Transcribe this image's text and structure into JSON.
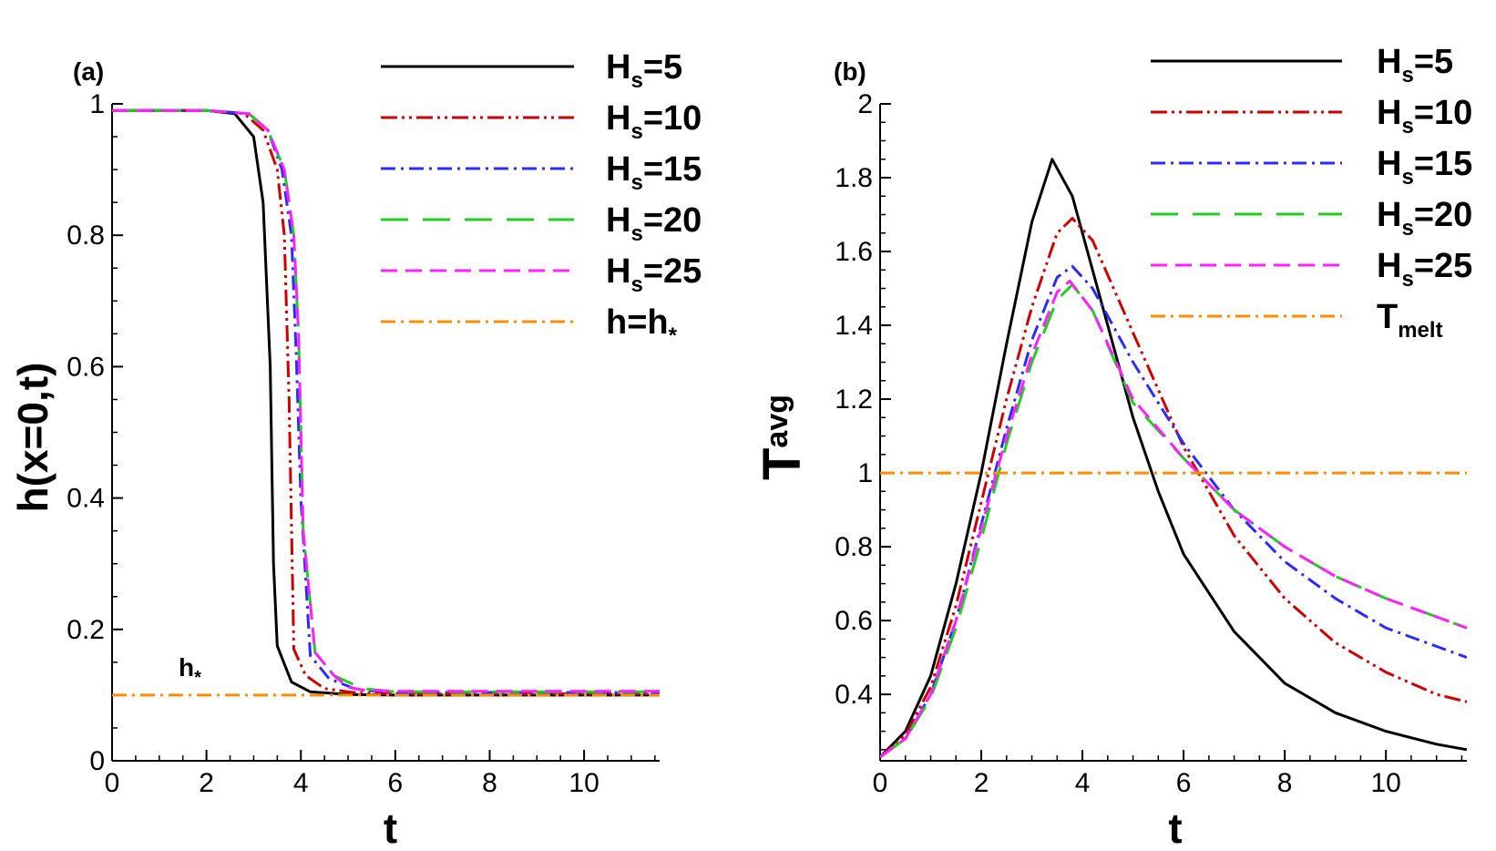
{
  "colors": {
    "Hs5": "#000000",
    "Hs10": "#cc0000",
    "Hs15": "#2b2bff",
    "Hs20": "#22cc22",
    "Hs25": "#ff22ff",
    "ref": "#ff8c00"
  },
  "chart_data": [
    {
      "type": "line",
      "panel_label": "(a)",
      "xlabel": "t",
      "ylabel": "h(x=0,t)",
      "xlim": [
        0,
        11.6
      ],
      "ylim": [
        0,
        1
      ],
      "xticks": [
        "0",
        "2",
        "4",
        "6",
        "8",
        "10"
      ],
      "yticks": [
        "0",
        "0.2",
        "0.4",
        "0.6",
        "0.8",
        "1"
      ],
      "annotation": {
        "main": "h",
        "sub": "*"
      },
      "legend": [
        {
          "main": "H",
          "sub": "s",
          "rest": "=5"
        },
        {
          "main": "H",
          "sub": "s",
          "rest": "=10"
        },
        {
          "main": "H",
          "sub": "s",
          "rest": "=15"
        },
        {
          "main": "H",
          "sub": "s",
          "rest": "=20"
        },
        {
          "main": "H",
          "sub": "s",
          "rest": "=25"
        },
        {
          "main": "h=h",
          "sub": "*",
          "rest": ""
        }
      ],
      "series": [
        {
          "key": "Hs5",
          "x": [
            0,
            2,
            2.6,
            3.0,
            3.2,
            3.35,
            3.42,
            3.5,
            3.8,
            4.2,
            5,
            6,
            8,
            11.6
          ],
          "y": [
            0.99,
            0.99,
            0.985,
            0.95,
            0.85,
            0.6,
            0.3,
            0.175,
            0.12,
            0.105,
            0.101,
            0.1,
            0.1,
            0.1
          ]
        },
        {
          "key": "Hs10",
          "x": [
            0,
            2,
            2.8,
            3.2,
            3.5,
            3.65,
            3.75,
            3.85,
            4.1,
            4.5,
            5.2,
            6,
            8,
            11.6
          ],
          "y": [
            0.99,
            0.99,
            0.985,
            0.96,
            0.9,
            0.8,
            0.55,
            0.17,
            0.13,
            0.11,
            0.103,
            0.102,
            0.102,
            0.102
          ]
        },
        {
          "key": "Hs15",
          "x": [
            0,
            2,
            2.9,
            3.3,
            3.6,
            3.8,
            3.9,
            4.0,
            4.2,
            4.6,
            5.2,
            6,
            8,
            11.6
          ],
          "y": [
            0.99,
            0.99,
            0.985,
            0.96,
            0.9,
            0.8,
            0.62,
            0.4,
            0.16,
            0.125,
            0.108,
            0.104,
            0.104,
            0.104
          ]
        },
        {
          "key": "Hs20",
          "x": [
            0,
            2,
            2.9,
            3.3,
            3.65,
            3.85,
            3.95,
            4.05,
            4.3,
            4.7,
            5.3,
            6,
            8,
            11.6
          ],
          "y": [
            0.99,
            0.99,
            0.985,
            0.96,
            0.9,
            0.8,
            0.65,
            0.35,
            0.165,
            0.13,
            0.11,
            0.105,
            0.105,
            0.105
          ]
        },
        {
          "key": "Hs25",
          "x": [
            0,
            2,
            2.9,
            3.3,
            3.65,
            3.85,
            3.95,
            4.05,
            4.3,
            4.7,
            5.0,
            5.3,
            6,
            8,
            11.6
          ],
          "y": [
            0.99,
            0.99,
            0.985,
            0.96,
            0.9,
            0.8,
            0.65,
            0.35,
            0.165,
            0.13,
            0.112,
            0.108,
            0.106,
            0.106,
            0.106
          ]
        },
        {
          "key": "ref",
          "x": [
            0,
            11.6
          ],
          "y": [
            0.1,
            0.1
          ]
        }
      ]
    },
    {
      "type": "line",
      "panel_label": "(b)",
      "xlabel": "T",
      "xlabel_text": "t",
      "ylabel": "avg",
      "ylabel_main": "T",
      "xlim": [
        0,
        11.6
      ],
      "ylim": [
        0.22,
        2
      ],
      "xticks": [
        "0",
        "2",
        "4",
        "6",
        "8",
        "10"
      ],
      "yticks": [
        "0.4",
        "0.6",
        "0.8",
        "1",
        "1.2",
        "1.4",
        "1.6",
        "1.8",
        "2"
      ],
      "legend": [
        {
          "main": "H",
          "sub": "s",
          "rest": "=5"
        },
        {
          "main": "H",
          "sub": "s",
          "rest": "=10"
        },
        {
          "main": "H",
          "sub": "s",
          "rest": "=15"
        },
        {
          "main": "H",
          "sub": "s",
          "rest": "=20"
        },
        {
          "main": "H",
          "sub": "s",
          "rest": "=25"
        },
        {
          "main": "T",
          "sub": "melt",
          "rest": ""
        }
      ],
      "series": [
        {
          "key": "Hs5",
          "x": [
            0,
            0.5,
            1,
            1.5,
            2,
            2.5,
            3,
            3.4,
            3.8,
            4.3,
            5,
            5.5,
            6,
            7,
            8,
            9,
            10,
            11,
            11.6
          ],
          "y": [
            0.23,
            0.3,
            0.45,
            0.7,
            1.0,
            1.35,
            1.68,
            1.85,
            1.75,
            1.5,
            1.15,
            0.95,
            0.78,
            0.57,
            0.43,
            0.35,
            0.3,
            0.265,
            0.25
          ]
        },
        {
          "key": "Hs10",
          "x": [
            0,
            0.5,
            1,
            1.5,
            2,
            2.5,
            3,
            3.5,
            3.8,
            4.2,
            5,
            6,
            7,
            8,
            9,
            10,
            11,
            11.6
          ],
          "y": [
            0.23,
            0.29,
            0.42,
            0.64,
            0.92,
            1.2,
            1.45,
            1.65,
            1.69,
            1.63,
            1.38,
            1.07,
            0.83,
            0.66,
            0.54,
            0.46,
            0.4,
            0.38
          ]
        },
        {
          "key": "Hs15",
          "x": [
            0,
            0.5,
            1,
            1.5,
            2,
            2.5,
            3,
            3.5,
            3.8,
            4.2,
            5,
            6,
            7,
            8,
            9,
            10,
            11,
            11.6
          ],
          "y": [
            0.23,
            0.28,
            0.4,
            0.6,
            0.86,
            1.12,
            1.36,
            1.53,
            1.56,
            1.5,
            1.3,
            1.08,
            0.9,
            0.76,
            0.66,
            0.58,
            0.53,
            0.5
          ]
        },
        {
          "key": "Hs20",
          "x": [
            0,
            0.5,
            1,
            1.5,
            2,
            2.5,
            3,
            3.5,
            3.8,
            4.2,
            5,
            6,
            7,
            8,
            9,
            10,
            11,
            11.6
          ],
          "y": [
            0.23,
            0.28,
            0.39,
            0.58,
            0.82,
            1.08,
            1.3,
            1.47,
            1.51,
            1.44,
            1.19,
            1.04,
            0.9,
            0.8,
            0.72,
            0.66,
            0.61,
            0.58
          ]
        },
        {
          "key": "Hs25",
          "x": [
            0,
            0.5,
            1,
            1.5,
            2,
            2.5,
            3,
            3.5,
            3.75,
            4.2,
            5,
            6,
            7,
            8,
            9,
            10,
            11,
            11.6
          ],
          "y": [
            0.23,
            0.28,
            0.4,
            0.6,
            0.85,
            1.1,
            1.32,
            1.49,
            1.52,
            1.44,
            1.2,
            1.04,
            0.9,
            0.8,
            0.72,
            0.66,
            0.61,
            0.58
          ]
        },
        {
          "key": "ref",
          "x": [
            0,
            11.6
          ],
          "y": [
            1,
            1
          ]
        }
      ]
    }
  ]
}
